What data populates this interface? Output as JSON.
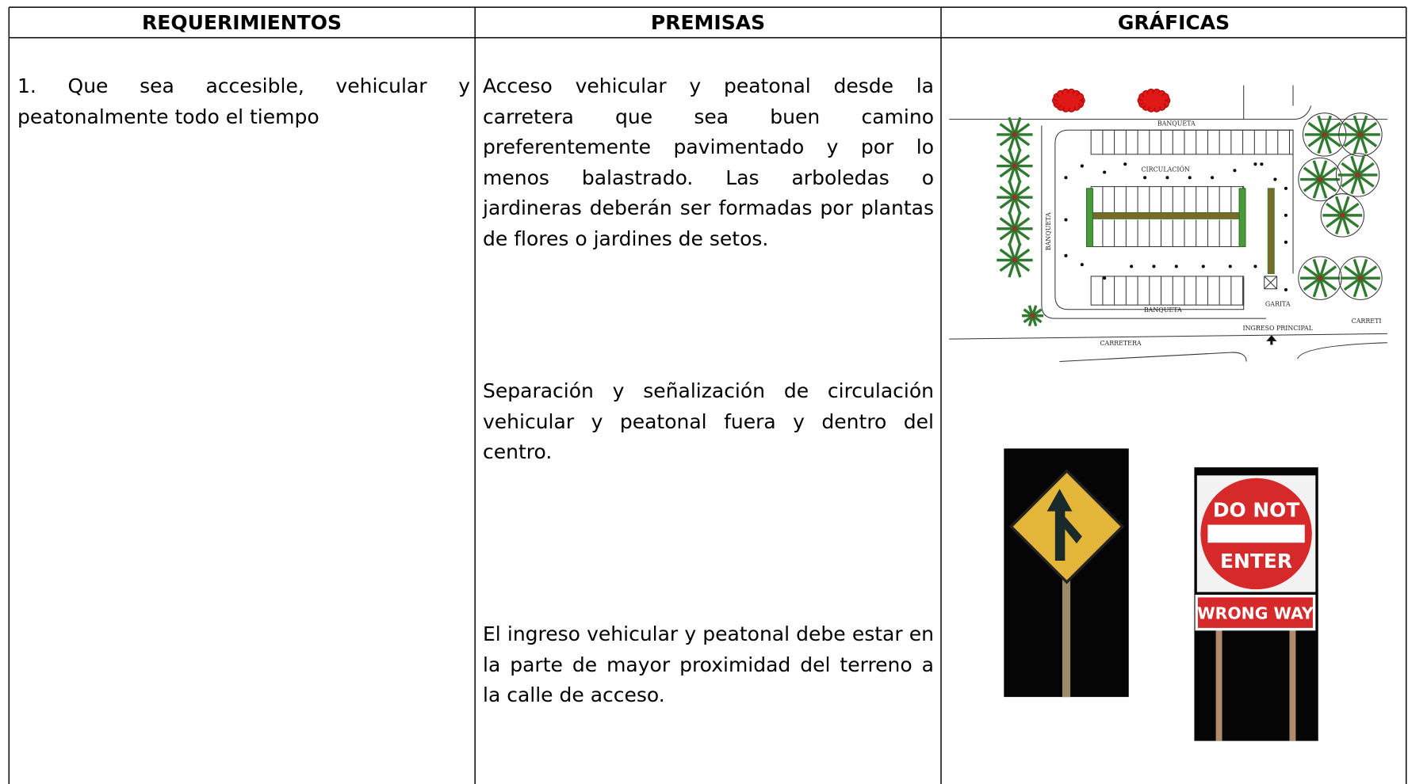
{
  "table": {
    "headers": [
      "REQUERIMIENTOS",
      "PREMISAS",
      "GRÁFICAS"
    ],
    "rows": [
      {
        "requirement": "1. Que sea accesible, vehicular y peatonalmente todo el tiempo",
        "premises": [
          "Acceso vehicular y peatonal desde la carretera que sea buen camino preferentemente pavimentado y por lo menos balastrado. Las arboledas o jardineras deberán ser formadas por plantas de flores o jardines de setos.",
          "Separación y señalización de circulación vehicular y peatonal fuera y dentro del centro.",
          "El ingreso vehicular y peatonal debe estar en la parte de mayor proximidad del terreno a la calle de acceso."
        ]
      }
    ]
  },
  "graphics": {
    "site_plan": {
      "top_sidewalk": "BANQUETA",
      "circulation": "CIRCULACIÓN",
      "side_sidewalk": "BANQUETA",
      "guardhouse": "GARITA",
      "bottom_sidewalk": "BANQUETA",
      "main_entrance": "INGRESO PRINCIPAL",
      "road": "CARRETERA",
      "road_right": "CARRETI"
    },
    "signs": {
      "do_not": "DO NOT",
      "enter": "ENTER",
      "wrong_way": "WRONG WAY"
    }
  }
}
